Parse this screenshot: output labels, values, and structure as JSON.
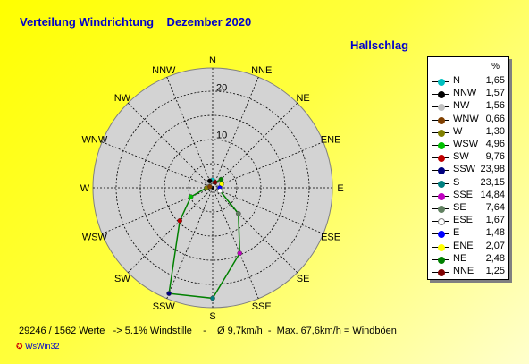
{
  "title": "Verteilung Windrichtung    Dezember 2020",
  "station": "Hallschlag",
  "footer": "29246 / 1562 Werte   -> 5.1% Windstille    -    Ø 9,7km/h  -  Max. 67,6km/h = Windböen",
  "brand": "WsWin32",
  "legend_unit": "%",
  "colors": {
    "plot_bg": "#d3d3d3",
    "grid": "#000000",
    "series_line": "#008000",
    "label_text": "#0000cc"
  },
  "chart_data": {
    "type": "radar",
    "directions": [
      "N",
      "NNE",
      "NE",
      "ENE",
      "E",
      "ESE",
      "SE",
      "SSE",
      "S",
      "SSW",
      "SW",
      "WSW",
      "W",
      "WNW",
      "NW",
      "NNW"
    ],
    "values": [
      1.65,
      1.25,
      2.48,
      2.07,
      1.48,
      1.67,
      7.64,
      14.84,
      23.15,
      23.98,
      9.76,
      4.96,
      1.3,
      0.66,
      1.56,
      1.57
    ],
    "rmax": 25,
    "ring_labels": [
      "10",
      "20"
    ],
    "legend": [
      {
        "name": "N",
        "value": "1,65",
        "color": "#00c0c0"
      },
      {
        "name": "NNW",
        "value": "1,57",
        "color": "#000000"
      },
      {
        "name": "NW",
        "value": "1,56",
        "color": "#c0c0c0"
      },
      {
        "name": "WNW",
        "value": "0,66",
        "color": "#804000"
      },
      {
        "name": "W",
        "value": "1,30",
        "color": "#808000"
      },
      {
        "name": "WSW",
        "value": "4,96",
        "color": "#00c000"
      },
      {
        "name": "SW",
        "value": "9,76",
        "color": "#c00000"
      },
      {
        "name": "SSW",
        "value": "23,98",
        "color": "#000080"
      },
      {
        "name": "S",
        "value": "23,15",
        "color": "#008080"
      },
      {
        "name": "SSE",
        "value": "14,84",
        "color": "#c000c0"
      },
      {
        "name": "SE",
        "value": "7,64",
        "color": "#608060"
      },
      {
        "name": "ESE",
        "value": "1,67",
        "color": "#ffffff"
      },
      {
        "name": "E",
        "value": "1,48",
        "color": "#0000ff"
      },
      {
        "name": "ENE",
        "value": "2,07",
        "color": "#ffff00"
      },
      {
        "name": "NE",
        "value": "2,48",
        "color": "#008000"
      },
      {
        "name": "NNE",
        "value": "1,25",
        "color": "#800000"
      }
    ],
    "point_colors": {
      "N": "#00c0c0",
      "NNE": "#800000",
      "NE": "#008000",
      "ENE": "#ffff00",
      "E": "#0000ff",
      "ESE": "#ffffff",
      "SE": "#608060",
      "SSE": "#c000c0",
      "S": "#008080",
      "SSW": "#000080",
      "SW": "#c00000",
      "WSW": "#00c000",
      "W": "#808000",
      "WNW": "#804000",
      "NW": "#c0c0c0",
      "NNW": "#000000"
    }
  }
}
